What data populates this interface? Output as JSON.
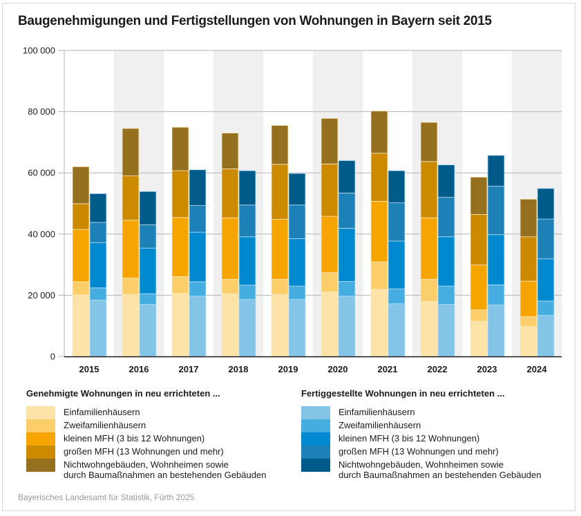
{
  "chart_data": {
    "type": "bar",
    "stacked": true,
    "grouped": true,
    "title": "Baugenehmigungen und Fertigstellungen von Wohnungen in Bayern seit 2015",
    "xlabel": "",
    "ylabel": "",
    "ylim": [
      0,
      100000
    ],
    "yticks": [
      0,
      20000,
      40000,
      60000,
      80000,
      100000
    ],
    "ytick_labels": [
      "0",
      "20 000",
      "40 000",
      "60 000",
      "80 000",
      "100 000"
    ],
    "grid": true,
    "categories": [
      "2015",
      "2016",
      "2017",
      "2018",
      "2019",
      "2020",
      "2021",
      "2022",
      "2023",
      "2024"
    ],
    "groups": [
      {
        "name": "Genehmigte Wohnungen in neu errichteten ...",
        "series": [
          {
            "name": "Einfamilienhäusern",
            "color": "#fde3a7",
            "values": [
              20100,
              20300,
              20600,
              20500,
              20300,
              21100,
              21900,
              18000,
              11500,
              9800
            ]
          },
          {
            "name": "Zweifamilienhäusern",
            "color": "#fcce6a",
            "values": [
              4300,
              5300,
              5500,
              4700,
              4900,
              6300,
              9000,
              7200,
              3700,
              3200
            ]
          },
          {
            "name": "kleinen MFH (3 bis 12 Wohnungen)",
            "color": "#f6a500",
            "values": [
              17100,
              18900,
              19300,
              20100,
              19600,
              18400,
              19800,
              20100,
              14700,
              11600
            ]
          },
          {
            "name": "großen MFH (13 Wohnungen und mehr)",
            "color": "#cc8a00",
            "values": [
              8400,
              14500,
              15300,
              16000,
              18000,
              17100,
              15700,
              18400,
              16500,
              14500
            ]
          },
          {
            "name": "Nichtwohngebäuden, Wohnheimen sowie durch Baumaßnahmen an bestehenden Gebäuden",
            "color": "#95701f",
            "values": [
              12100,
              15500,
              14200,
              11700,
              12700,
              14900,
              13800,
              12800,
              12200,
              12300
            ]
          }
        ],
        "totals": [
          62000,
          74500,
          74900,
          73000,
          75500,
          77800,
          80200,
          76500,
          58600,
          51400
        ]
      },
      {
        "name": "Fertiggestellte Wohnungen in neu errichteten ...",
        "series": [
          {
            "name": "Einfamilienhäusern",
            "color": "#84c4e6",
            "values": [
              18400,
              17000,
              19700,
              18600,
              18600,
              19700,
              17200,
              17000,
              16800,
              13400
            ]
          },
          {
            "name": "Zweifamilienhäusern",
            "color": "#46ade0",
            "values": [
              4000,
              3500,
              4700,
              4700,
              4400,
              4800,
              4900,
              6000,
              6600,
              4700
            ]
          },
          {
            "name": "kleinen MFH (3 bis 12 Wohnungen)",
            "color": "#0089cf",
            "values": [
              14800,
              14900,
              16200,
              15800,
              15500,
              17400,
              15600,
              16100,
              16400,
              13800
            ]
          },
          {
            "name": "großen MFH (13 Wohnungen und mehr)",
            "color": "#1d80b6",
            "values": [
              6600,
              7600,
              8700,
              10400,
              11000,
              11500,
              12500,
              12900,
              15800,
              13000
            ]
          },
          {
            "name": "Nichtwohngebäuden, Wohnheimen sowie durch Baumaßnahmen an bestehenden Gebäuden",
            "color": "#005a8a",
            "values": [
              9400,
              10900,
              11700,
              11200,
              10300,
              10600,
              10500,
              10600,
              10100,
              10000
            ]
          }
        ],
        "totals": [
          53200,
          53900,
          61000,
          60700,
          59800,
          64000,
          60700,
          62600,
          65700,
          54900
        ]
      }
    ],
    "legend_placement": "bottom"
  },
  "legend": {
    "left": {
      "title": "Genehmigte Wohnungen in neu errichteten ...",
      "items": [
        {
          "label": "Einfamilienhäusern",
          "color": "#fde3a7"
        },
        {
          "label": "Zweifamilienhäusern",
          "color": "#fcce6a"
        },
        {
          "label": "kleinen MFH (3 bis 12 Wohnungen)",
          "color": "#f6a500"
        },
        {
          "label": "großen MFH (13 Wohnungen und mehr)",
          "color": "#cc8a00"
        },
        {
          "label": "Nichtwohngebäuden, Wohnheimen sowie",
          "label2": "durch Baumaßnahmen an bestehenden Gebäuden",
          "color": "#95701f"
        }
      ]
    },
    "right": {
      "title": "Fertiggestellte Wohnungen in neu errichteten ...",
      "items": [
        {
          "label": "Einfamilienhäusern",
          "color": "#84c4e6"
        },
        {
          "label": "Zweifamilienhäusern",
          "color": "#46ade0"
        },
        {
          "label": "kleinen MFH (3 bis 12 Wohnungen)",
          "color": "#0089cf"
        },
        {
          "label": "großen MFH (13 Wohnungen und mehr)",
          "color": "#1d80b6"
        },
        {
          "label": "Nichtwohngebäuden, Wohnheimen sowie",
          "label2": "durch Baumaßnahmen an bestehenden Gebäuden",
          "color": "#005a8a"
        }
      ]
    }
  },
  "colors": {
    "band_shade": "#f0f0f0",
    "gridline": "#b3b3b3",
    "axis": "#1a1a1a"
  },
  "footer": {
    "source": "Bayerisches Landesamt für Statistik, Fürth 2025"
  }
}
